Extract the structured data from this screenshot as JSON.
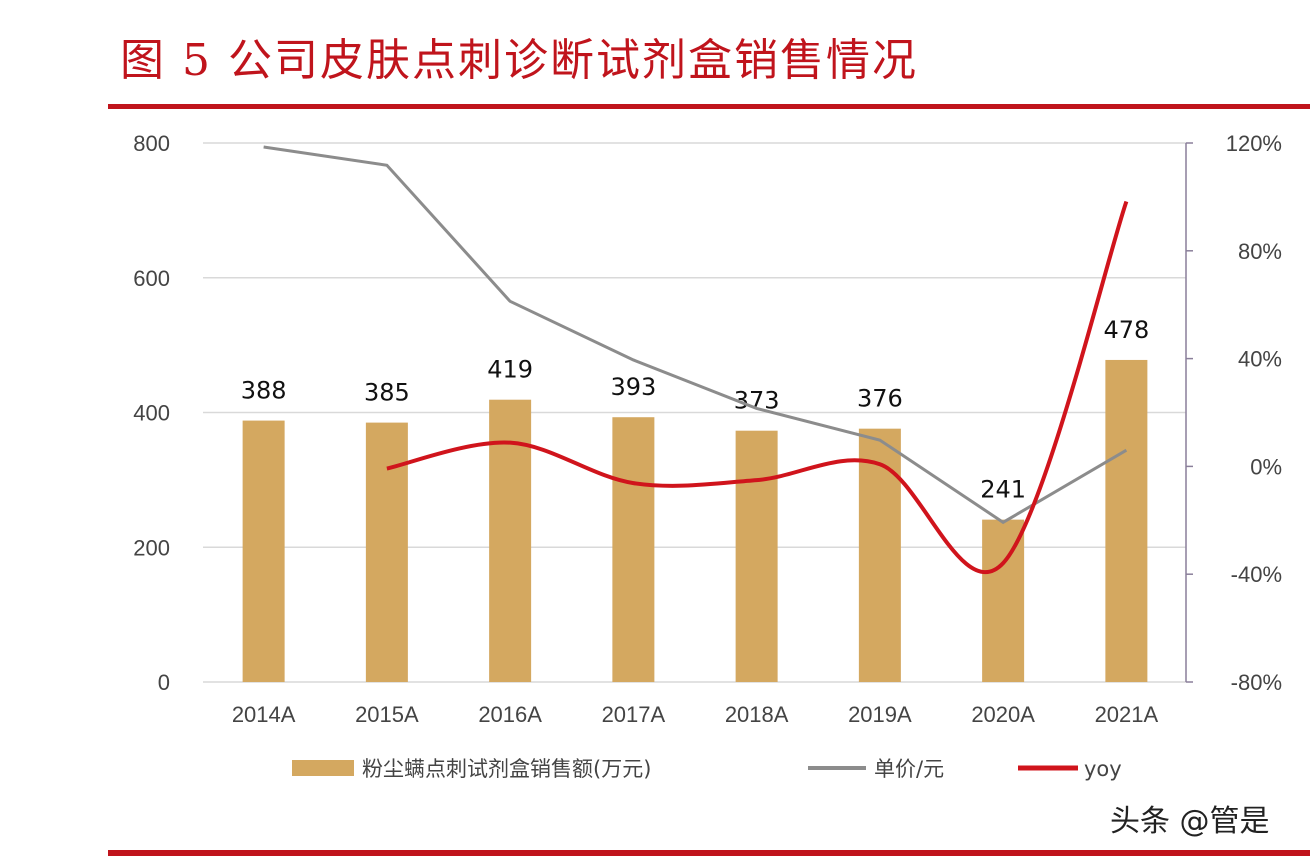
{
  "title": "图 5 公司皮肤点刺诊断试剂盒销售情况",
  "watermark": "头条 @管是",
  "chart_data": {
    "type": "bar",
    "title": "图 5 公司皮肤点刺诊断试剂盒销售情况",
    "categories": [
      "2014A",
      "2015A",
      "2016A",
      "2017A",
      "2018A",
      "2019A",
      "2020A",
      "2021A"
    ],
    "series": [
      {
        "name": "粉尘螨点刺试剂盒销售额(万元)",
        "type": "bar",
        "axis": "left",
        "color": "#d4a860",
        "values": [
          388,
          385,
          419,
          393,
          373,
          376,
          241,
          478
        ],
        "data_labels": [
          "388",
          "385",
          "419",
          "393",
          "373",
          "376",
          "241",
          "478"
        ]
      },
      {
        "name": "单价/元",
        "type": "line",
        "axis": "left",
        "color": "#8c8c8c",
        "values": [
          794,
          767,
          565,
          478,
          406,
          359,
          237,
          344
        ]
      },
      {
        "name": "yoy",
        "type": "line",
        "axis": "right",
        "color": "#d0141c",
        "values": [
          null,
          -0.8,
          8.8,
          -6.2,
          -5.1,
          0.8,
          -35.9,
          98.3
        ]
      }
    ],
    "left_axis": {
      "ylim": [
        0,
        800
      ],
      "ticks": [
        "0",
        "200",
        "400",
        "600",
        "800"
      ]
    },
    "right_axis": {
      "ylim": [
        -80,
        120
      ],
      "ticks": [
        "-80%",
        "-40%",
        "0%",
        "40%",
        "80%",
        "120%"
      ]
    },
    "grid": true,
    "legend": "bottom"
  }
}
